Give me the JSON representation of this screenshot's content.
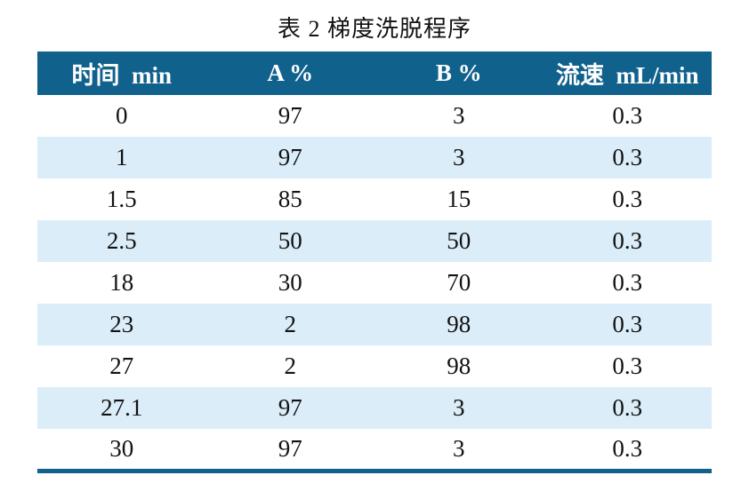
{
  "title": "表 2 梯度洗脱程序",
  "colors": {
    "header_bg": "#11618D",
    "stripe_bg": "#DBEDF8",
    "header_text": "#FFFFFF",
    "body_text": "#121212",
    "border": "#11618D",
    "page_bg": "#FFFFFF"
  },
  "table": {
    "headers": [
      "时间  min",
      "A %",
      "B %",
      "流速  mL/min"
    ],
    "rows": [
      [
        "0",
        "97",
        "3",
        "0.3"
      ],
      [
        "1",
        "97",
        "3",
        "0.3"
      ],
      [
        "1.5",
        "85",
        "15",
        "0.3"
      ],
      [
        "2.5",
        "50",
        "50",
        "0.3"
      ],
      [
        "18",
        "30",
        "70",
        "0.3"
      ],
      [
        "23",
        "2",
        "98",
        "0.3"
      ],
      [
        "27",
        "2",
        "98",
        "0.3"
      ],
      [
        "27.1",
        "97",
        "3",
        "0.3"
      ],
      [
        "30",
        "97",
        "3",
        "0.3"
      ]
    ]
  }
}
